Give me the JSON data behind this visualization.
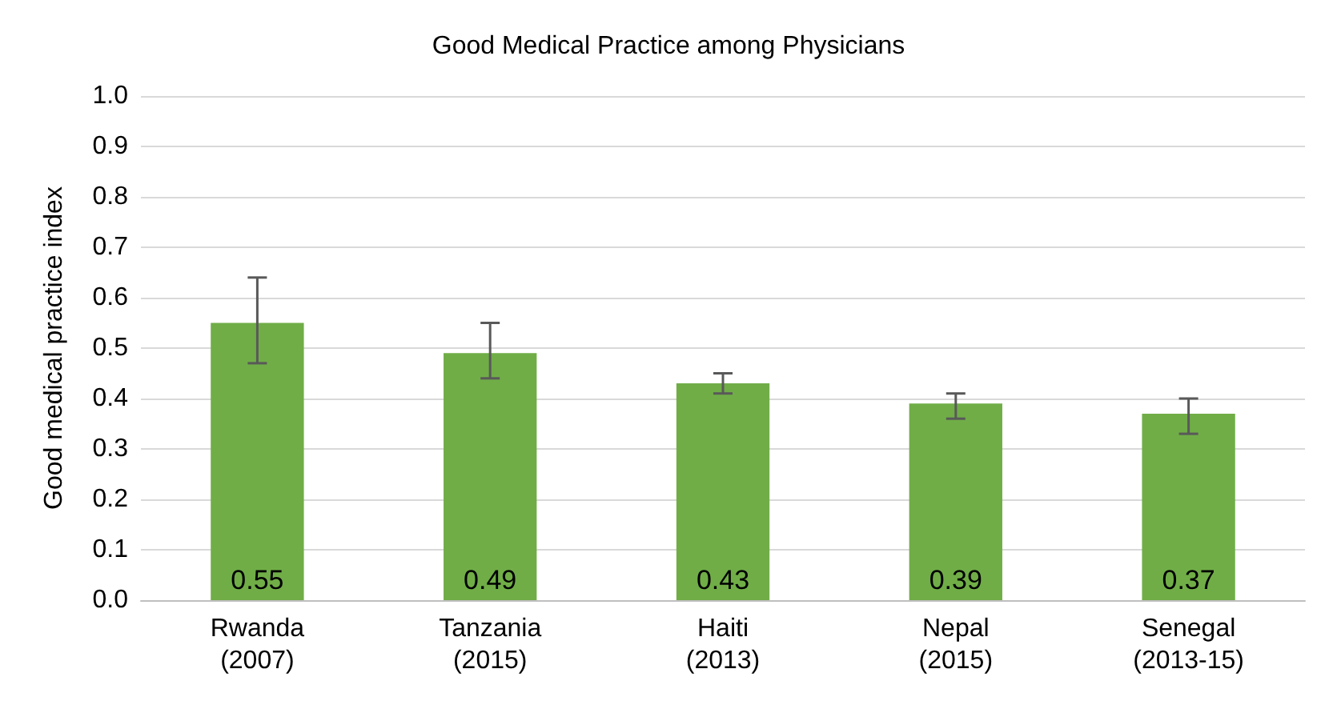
{
  "chart_data": {
    "type": "bar",
    "title": "Good Medical Practice among Physicians",
    "ylabel": "Good medical practice index",
    "categories": [
      "Rwanda\n(2007)",
      "Tanzania\n(2015)",
      "Haiti\n(2013)",
      "Nepal\n(2015)",
      "Senegal\n(2013-15)"
    ],
    "values": [
      0.55,
      0.49,
      0.43,
      0.39,
      0.37
    ],
    "errors": [
      [
        0.47,
        0.64
      ],
      [
        0.44,
        0.55
      ],
      [
        0.41,
        0.45
      ],
      [
        0.36,
        0.41
      ],
      [
        0.33,
        0.4
      ]
    ],
    "color": "#70ad47",
    "ylim": [
      0,
      1
    ],
    "yticks": [
      {
        "value": 0,
        "label": "0.0"
      },
      0.1,
      0.2,
      0.3,
      0.4,
      0.5,
      0.6,
      0.7,
      0.8,
      0.9,
      {
        "value": 1,
        "label": "1.0"
      }
    ],
    "grid": "y",
    "data_labels": true
  }
}
